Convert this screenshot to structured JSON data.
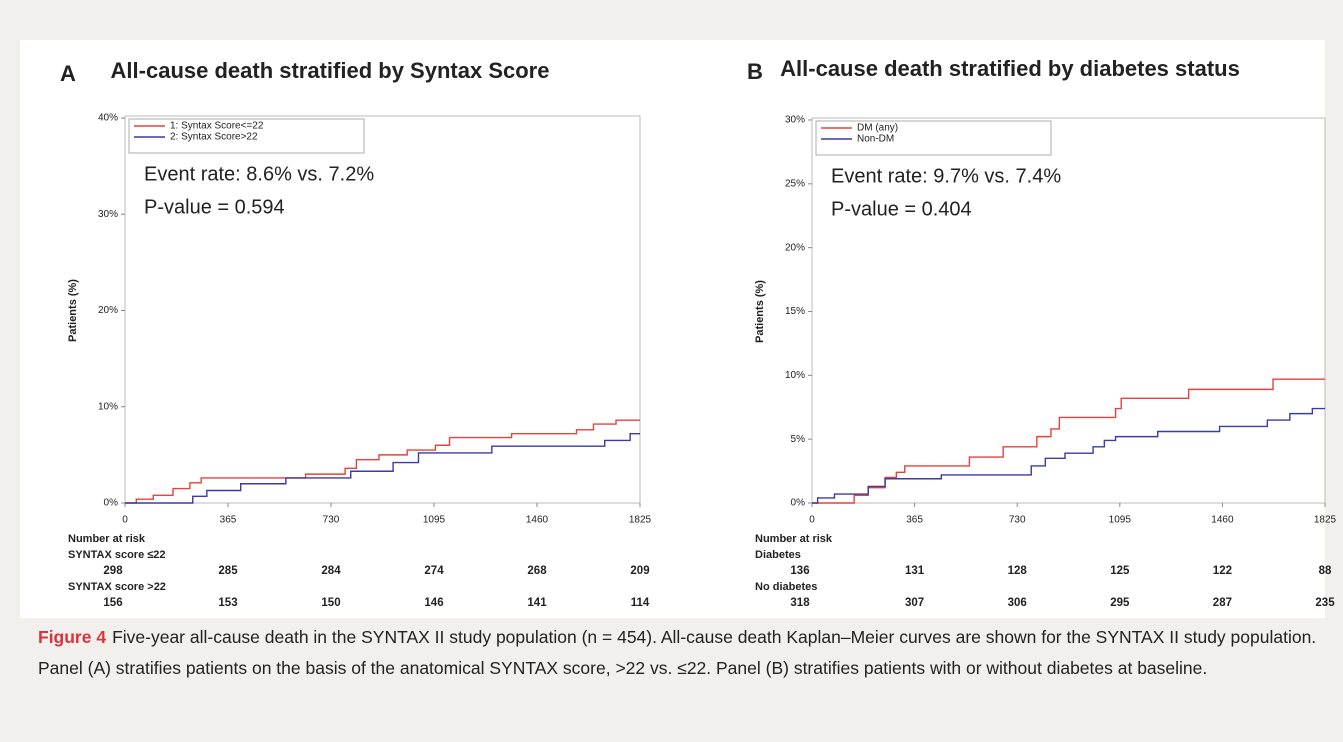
{
  "chart_data": [
    {
      "type": "line",
      "label": "A",
      "title": "All-cause death stratified by Syntax Score",
      "ylabel": "Patients (%)",
      "xlim": [
        0,
        1825
      ],
      "xticks": [
        0,
        365,
        730,
        1095,
        1460,
        1825
      ],
      "ylim": [
        0,
        40
      ],
      "yticks": [
        {
          "value": 0,
          "label": "0%"
        },
        {
          "value": 10,
          "label": "10%"
        },
        {
          "value": 20,
          "label": "20%"
        },
        {
          "value": 30,
          "label": "30%"
        },
        {
          "value": 40,
          "label": "40%"
        }
      ],
      "legend": "top-left",
      "annotations": [
        "Event rate: 8.6% vs. 7.2%",
        "P-value = 0.594"
      ],
      "series": [
        {
          "name": "1: Syntax Score<=22",
          "color": "#e8413c",
          "x": [
            0,
            40,
            40,
            100,
            100,
            170,
            170,
            230,
            230,
            270,
            270,
            640,
            640,
            780,
            780,
            820,
            820,
            900,
            900,
            1000,
            1000,
            1100,
            1100,
            1150,
            1150,
            1370,
            1370,
            1600,
            1600,
            1660,
            1660,
            1740,
            1740,
            1825
          ],
          "values": [
            0,
            0,
            0.4,
            0.4,
            0.8,
            0.8,
            1.5,
            1.5,
            2.1,
            2.1,
            2.6,
            2.6,
            3.0,
            3.0,
            3.6,
            3.6,
            4.5,
            4.5,
            5.0,
            5.0,
            5.5,
            5.5,
            6.0,
            6.0,
            6.8,
            6.8,
            7.2,
            7.2,
            7.6,
            7.6,
            8.2,
            8.2,
            8.6,
            8.6
          ]
        },
        {
          "name": "2: Syntax Score>22",
          "color": "#3a3aa8",
          "x": [
            0,
            240,
            240,
            290,
            290,
            410,
            410,
            570,
            570,
            800,
            800,
            950,
            950,
            1040,
            1040,
            1300,
            1300,
            1700,
            1700,
            1790,
            1790,
            1825
          ],
          "values": [
            0,
            0,
            0.7,
            0.7,
            1.3,
            1.3,
            2.0,
            2.0,
            2.6,
            2.6,
            3.3,
            3.3,
            4.2,
            4.2,
            5.2,
            5.2,
            5.9,
            5.9,
            6.5,
            6.5,
            7.2,
            7.2
          ]
        }
      ],
      "risk_table": {
        "title": "Number at risk",
        "groups": [
          {
            "name": "SYNTAX score ≤22",
            "values": [
              298,
              285,
              284,
              274,
              268,
              209
            ]
          },
          {
            "name": "SYNTAX score >22",
            "values": [
              156,
              153,
              150,
              146,
              141,
              114
            ]
          }
        ]
      }
    },
    {
      "type": "line",
      "label": "B",
      "title": "All-cause death stratified by diabetes status",
      "ylabel": "Patients (%)",
      "xlim": [
        0,
        1825
      ],
      "xticks": [
        0,
        365,
        730,
        1095,
        1460,
        1825
      ],
      "ylim": [
        0,
        30
      ],
      "yticks": [
        {
          "value": 0,
          "label": "0%"
        },
        {
          "value": 5,
          "label": "5%"
        },
        {
          "value": 10,
          "label": "10%"
        },
        {
          "value": 15,
          "label": "15%"
        },
        {
          "value": 20,
          "label": "20%"
        },
        {
          "value": 25,
          "label": "25%"
        },
        {
          "value": 30,
          "label": "30%"
        }
      ],
      "legend": "top-left",
      "annotations": [
        "Event rate: 9.7% vs. 7.4%",
        "P-value = 0.404"
      ],
      "series": [
        {
          "name": "DM (any)",
          "color": "#e8413c",
          "x": [
            0,
            150,
            150,
            200,
            200,
            260,
            260,
            300,
            300,
            330,
            330,
            560,
            560,
            680,
            680,
            800,
            800,
            850,
            850,
            880,
            880,
            1080,
            1080,
            1100,
            1100,
            1340,
            1340,
            1640,
            1640,
            1825
          ],
          "values": [
            0,
            0,
            0.6,
            0.6,
            1.2,
            1.2,
            2.0,
            2.0,
            2.4,
            2.4,
            2.9,
            2.9,
            3.6,
            3.6,
            4.4,
            4.4,
            5.2,
            5.2,
            5.8,
            5.8,
            6.7,
            6.7,
            7.4,
            7.4,
            8.2,
            8.2,
            8.9,
            8.9,
            9.7,
            9.7
          ]
        },
        {
          "name": "Non-DM",
          "color": "#3a3aa8",
          "x": [
            0,
            20,
            20,
            80,
            80,
            200,
            200,
            260,
            260,
            460,
            460,
            780,
            780,
            830,
            830,
            900,
            900,
            1000,
            1000,
            1040,
            1040,
            1080,
            1080,
            1230,
            1230,
            1450,
            1450,
            1620,
            1620,
            1700,
            1700,
            1780,
            1780,
            1825
          ],
          "values": [
            0,
            0,
            0.4,
            0.4,
            0.7,
            0.7,
            1.3,
            1.3,
            1.9,
            1.9,
            2.2,
            2.2,
            2.9,
            2.9,
            3.5,
            3.5,
            3.9,
            3.9,
            4.4,
            4.4,
            4.9,
            4.9,
            5.2,
            5.2,
            5.6,
            5.6,
            6.0,
            6.0,
            6.5,
            6.5,
            7.0,
            7.0,
            7.4,
            7.4
          ]
        }
      ],
      "risk_table": {
        "title": "Number at risk",
        "groups": [
          {
            "name": "Diabetes",
            "values": [
              136,
              131,
              128,
              125,
              122,
              88
            ]
          },
          {
            "name": "No diabetes",
            "values": [
              318,
              307,
              306,
              295,
              287,
              235
            ]
          }
        ]
      }
    }
  ],
  "caption": {
    "label": "Figure 4",
    "text": "Five-year all-cause death in the SYNTAX II study population (n = 454). All-cause death Kaplan–Meier curves are shown for the SYNTAX II study population. Panel (A) stratifies patients on the basis of the anatomical SYNTAX score, >22 vs. ≤22. Panel (B) stratifies patients with or without diabetes at baseline."
  }
}
